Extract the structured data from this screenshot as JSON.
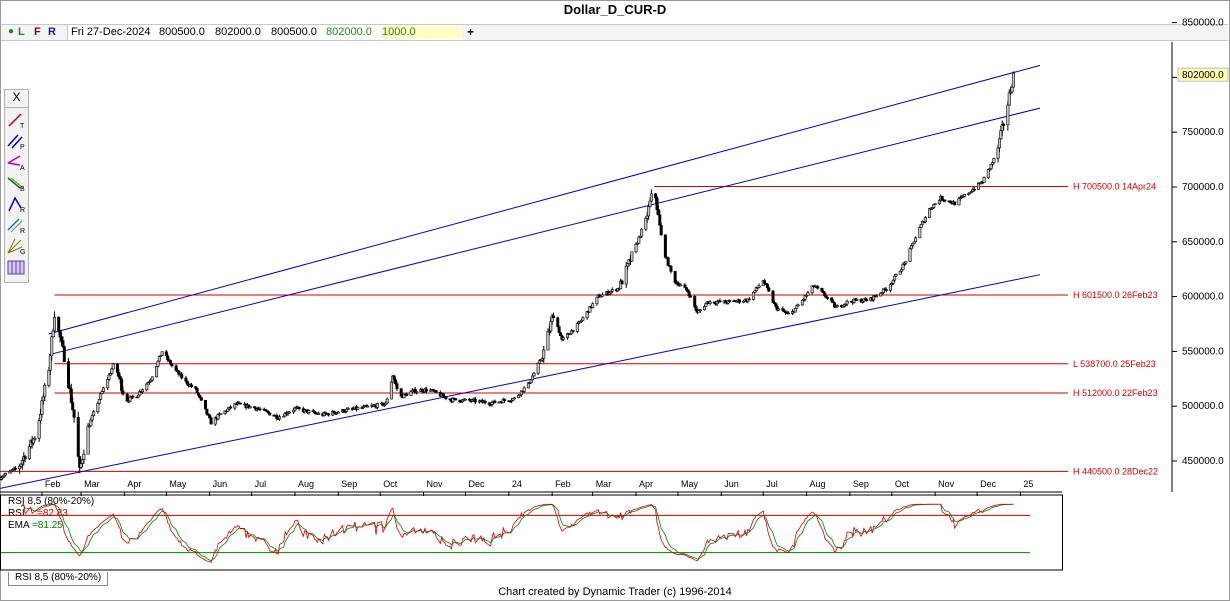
{
  "window": {
    "title": "Dollar_D_CUR-D"
  },
  "infobar": {
    "dot": "●",
    "l_label": "L",
    "f_label": "F",
    "r_label": "R",
    "date": "Fri 27-Dec-2024",
    "open": "800500.0",
    "high": "802000.0",
    "low": "800500.0",
    "close": "802000.0",
    "volume": "1000.0",
    "plus": "+"
  },
  "toolbar": {
    "close": "X"
  },
  "colors": {
    "up": "#c8c8c8",
    "down": "#000000",
    "channel": "#0000c0",
    "level": "#d00000",
    "rsi": "#d00000",
    "ema": "#008000"
  },
  "chart_data": {
    "type": "candlestick",
    "price_axis": {
      "ticks": [
        450000,
        500000,
        550000,
        600000,
        650000,
        700000,
        750000,
        800000,
        850000
      ],
      "tick_labels": [
        "450000.0",
        "500000.0",
        "550000.0",
        "600000.0",
        "650000.0",
        "700000.0",
        "750000.0",
        "800000.0",
        "850000.0"
      ]
    },
    "current_price_label": "802000.0",
    "months": [
      {
        "label": "Feb",
        "date": "2023-02-01"
      },
      {
        "label": "Mar",
        "date": "2023-03-01"
      },
      {
        "label": "Apr",
        "date": "2023-04-01"
      },
      {
        "label": "May",
        "date": "2023-05-01"
      },
      {
        "label": "Jun",
        "date": "2023-06-01"
      },
      {
        "label": "Jul",
        "date": "2023-07-01"
      },
      {
        "label": "Aug",
        "date": "2023-08-01"
      },
      {
        "label": "Sep",
        "date": "2023-09-01"
      },
      {
        "label": "Oct",
        "date": "2023-10-01"
      },
      {
        "label": "Nov",
        "date": "2023-11-01"
      },
      {
        "label": "Dec",
        "date": "2023-12-01"
      },
      {
        "label": "24",
        "date": "2024-01-01"
      },
      {
        "label": "Feb",
        "date": "2024-02-01"
      },
      {
        "label": "Mar",
        "date": "2024-03-01"
      },
      {
        "label": "Apr",
        "date": "2024-04-01"
      },
      {
        "label": "May",
        "date": "2024-05-01"
      },
      {
        "label": "Jun",
        "date": "2024-06-01"
      },
      {
        "label": "Jul",
        "date": "2024-07-01"
      },
      {
        "label": "Aug",
        "date": "2024-08-01"
      },
      {
        "label": "Sep",
        "date": "2024-09-01"
      },
      {
        "label": "Oct",
        "date": "2024-10-01"
      },
      {
        "label": "Nov",
        "date": "2024-11-01"
      },
      {
        "label": "Dec",
        "date": "2024-12-01"
      },
      {
        "label": "25",
        "date": "2025-01-01"
      }
    ],
    "x_range": [
      "2023-01-02",
      "2025-01-15"
    ],
    "price_path": [
      [
        "2023-01-02",
        435000
      ],
      [
        "2023-01-15",
        444000
      ],
      [
        "2023-01-28",
        475000
      ],
      [
        "2023-02-06",
        535000
      ],
      [
        "2023-02-10",
        585000
      ],
      [
        "2023-02-17",
        545000
      ],
      [
        "2023-02-24",
        490000
      ],
      [
        "2023-02-28",
        440500
      ],
      [
        "2023-03-06",
        480000
      ],
      [
        "2023-03-15",
        510000
      ],
      [
        "2023-03-25",
        540000
      ],
      [
        "2023-04-02",
        505000
      ],
      [
        "2023-04-10",
        510000
      ],
      [
        "2023-04-20",
        525000
      ],
      [
        "2023-04-28",
        550000
      ],
      [
        "2023-05-06",
        535000
      ],
      [
        "2023-05-15",
        522000
      ],
      [
        "2023-05-22",
        515000
      ],
      [
        "2023-06-02",
        485000
      ],
      [
        "2023-06-08",
        492000
      ],
      [
        "2023-06-20",
        502000
      ],
      [
        "2023-07-05",
        498000
      ],
      [
        "2023-07-20",
        490000
      ],
      [
        "2023-08-01",
        498000
      ],
      [
        "2023-08-20",
        492000
      ],
      [
        "2023-09-05",
        496000
      ],
      [
        "2023-09-25",
        500000
      ],
      [
        "2023-10-05",
        502000
      ],
      [
        "2023-10-10",
        528000
      ],
      [
        "2023-10-15",
        508000
      ],
      [
        "2023-10-25",
        514000
      ],
      [
        "2023-11-05",
        515000
      ],
      [
        "2023-11-20",
        506000
      ],
      [
        "2023-12-05",
        505000
      ],
      [
        "2023-12-20",
        503000
      ],
      [
        "2024-01-05",
        507000
      ],
      [
        "2024-01-15",
        520000
      ],
      [
        "2024-01-25",
        545000
      ],
      [
        "2024-02-02",
        585000
      ],
      [
        "2024-02-08",
        560000
      ],
      [
        "2024-02-20",
        575000
      ],
      [
        "2024-03-05",
        600000
      ],
      [
        "2024-03-20",
        608000
      ],
      [
        "2024-03-30",
        640000
      ],
      [
        "2024-04-08",
        670000
      ],
      [
        "2024-04-14",
        700500
      ],
      [
        "2024-04-20",
        645000
      ],
      [
        "2024-04-28",
        615000
      ],
      [
        "2024-05-08",
        605000
      ],
      [
        "2024-05-15",
        585000
      ],
      [
        "2024-05-22",
        595000
      ],
      [
        "2024-06-05",
        595000
      ],
      [
        "2024-06-20",
        597000
      ],
      [
        "2024-07-01",
        615000
      ],
      [
        "2024-07-10",
        590000
      ],
      [
        "2024-07-20",
        583000
      ],
      [
        "2024-07-30",
        598000
      ],
      [
        "2024-08-06",
        610000
      ],
      [
        "2024-08-15",
        600000
      ],
      [
        "2024-08-22",
        590000
      ],
      [
        "2024-09-01",
        596000
      ],
      [
        "2024-09-15",
        597000
      ],
      [
        "2024-09-28",
        608000
      ],
      [
        "2024-10-10",
        630000
      ],
      [
        "2024-10-20",
        660000
      ],
      [
        "2024-10-28",
        680000
      ],
      [
        "2024-11-05",
        690000
      ],
      [
        "2024-11-15",
        685000
      ],
      [
        "2024-11-25",
        695000
      ],
      [
        "2024-12-05",
        705000
      ],
      [
        "2024-12-15",
        730000
      ],
      [
        "2024-12-22",
        770000
      ],
      [
        "2024-12-27",
        802000
      ]
    ],
    "levels": [
      {
        "value": 700500,
        "label": "H 700500.0 14Apr24"
      },
      {
        "value": 601500,
        "label": "H 601500.0 26Feb23"
      },
      {
        "value": 538700,
        "label": "L 538700.0 25Feb23"
      },
      {
        "value": 512000,
        "label": "H 512000.0 22Feb23"
      },
      {
        "value": 440500,
        "label": "H 440500.0 28Dec22"
      }
    ],
    "channel_lines": [
      [
        [
          "2023-02-06",
          566000
        ],
        [
          "2025-01-15",
          811000
        ]
      ],
      [
        [
          "2023-02-06",
          547000
        ],
        [
          "2025-01-15",
          772000
        ]
      ],
      [
        [
          "2023-01-02",
          425000
        ],
        [
          "2025-01-15",
          620000
        ]
      ]
    ],
    "rsi": {
      "title": "RSI 8,5 (80%-20%)",
      "rsi_label": "RSI",
      "rsi_value": "=82.83",
      "ema_label": "EMA",
      "ema_value": "=81.25",
      "upper": 80,
      "lower": 20,
      "tab_label": "RSI 8,5 (80%-20%)"
    },
    "footer": "Chart created by Dynamic Trader  (c) 1996-2014"
  }
}
